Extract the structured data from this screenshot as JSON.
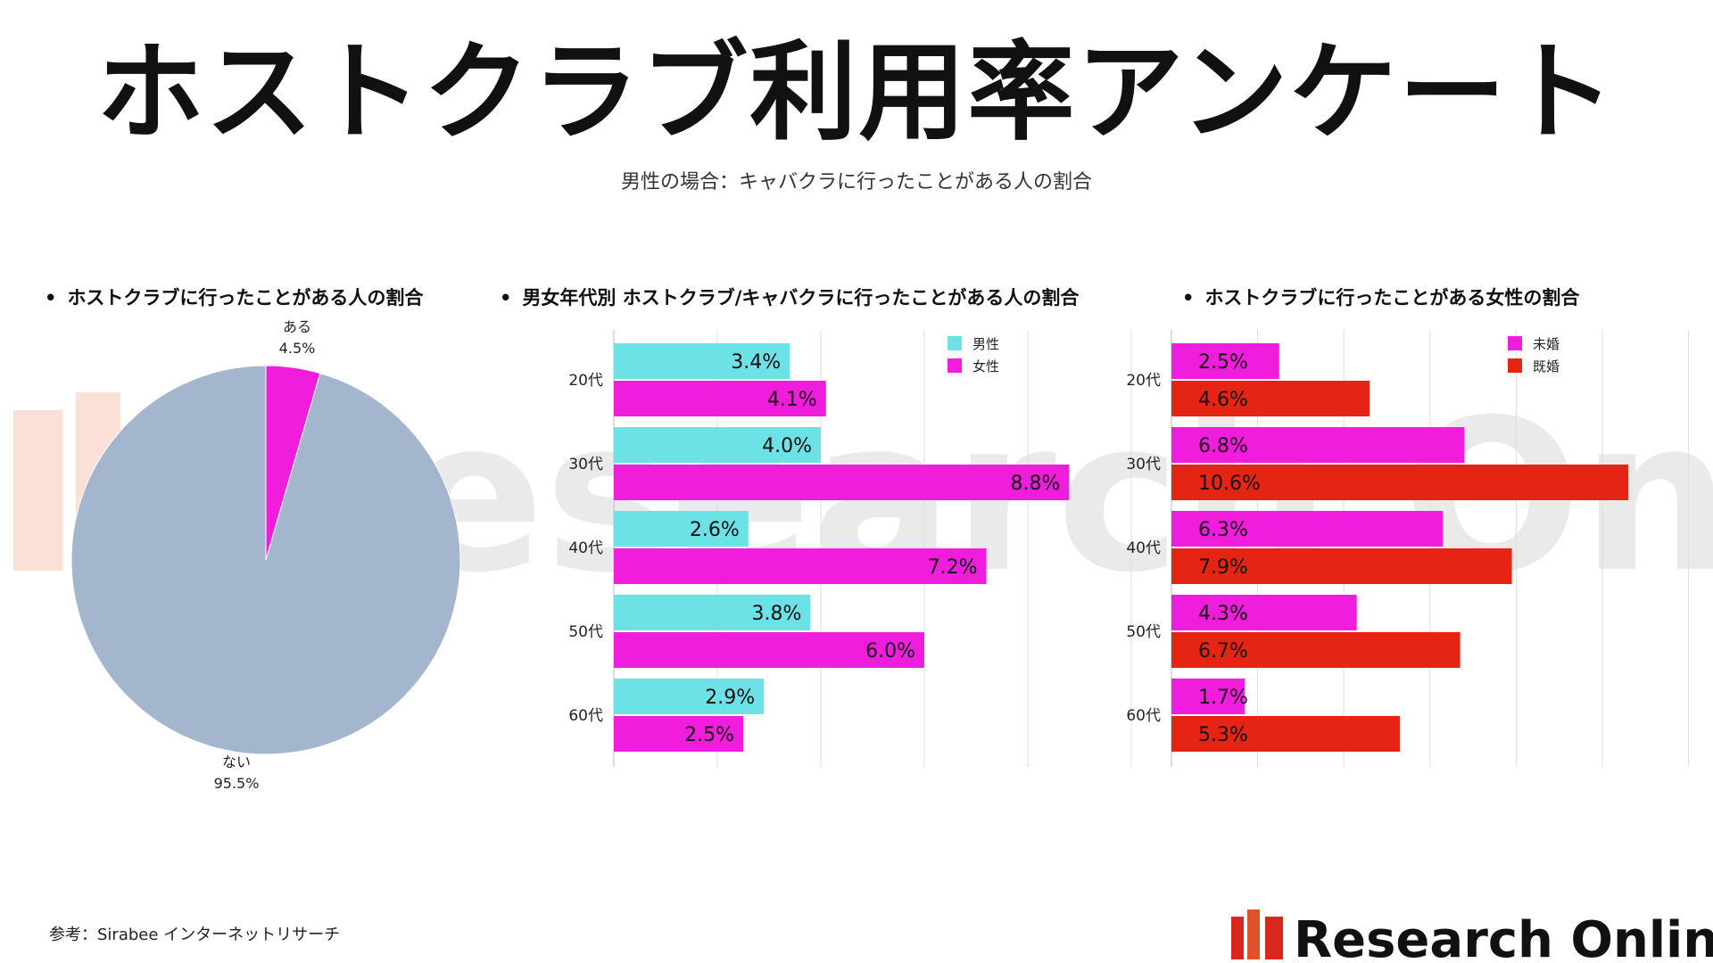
{
  "title": "ホストクラブ利用率アンケート",
  "subtitle": "男性の場合：キャバクラに行ったことがある人の割合",
  "sections": [
    "ホストクラブに行ったことがある人の割合",
    "男女年代別  ホストクラブ/キャバクラに行ったことがある人の割合",
    "ホストクラブに行ったことがある女性の割合"
  ],
  "bullet": "•",
  "watermark_text": "Research Online",
  "logo_text": "Research Online",
  "source_note": "参考：Sirabee インターネットリサーチ",
  "colors": {
    "cyan": "#6ce1e6",
    "magenta": "#f01ddc",
    "red": "#e52413",
    "pie_gray": "#a4b6cd",
    "grid": "#dddddd",
    "watermark": "#e8e8e8",
    "logo_red": "#d8281e"
  },
  "chart_data": [
    {
      "type": "pie",
      "title": "ホストクラブに行ったことがある人の割合",
      "slices": [
        {
          "label": "ある",
          "value": 4.5,
          "display": "4.5%",
          "color": "#f01ddc"
        },
        {
          "label": "ない",
          "value": 95.5,
          "display": "95.5%",
          "color": "#a4b6cd"
        }
      ]
    },
    {
      "type": "bar",
      "orientation": "horizontal",
      "title": "男女年代別  ホストクラブ/キャバクラに行ったことがある人の割合",
      "categories": [
        "20代",
        "30代",
        "40代",
        "50代",
        "60代"
      ],
      "series": [
        {
          "name": "男性",
          "color": "#6ce1e6",
          "values": [
            3.4,
            4.0,
            2.6,
            3.8,
            2.9
          ],
          "labels": [
            "3.4%",
            "4.0%",
            "2.6%",
            "3.8%",
            "2.9%"
          ]
        },
        {
          "name": "女性",
          "color": "#f01ddc",
          "values": [
            4.1,
            8.8,
            7.2,
            6.0,
            2.5
          ],
          "labels": [
            "4.1%",
            "8.8%",
            "7.2%",
            "6.0%",
            "2.5%"
          ]
        }
      ],
      "xlim": [
        0,
        10
      ],
      "x_ticks": [
        "0",
        "2",
        "4",
        "6",
        "8",
        "10"
      ],
      "grid": true,
      "legend": "top-right"
    },
    {
      "type": "bar",
      "orientation": "horizontal",
      "title": "ホストクラブに行ったことがある女性の割合",
      "categories": [
        "20代",
        "30代",
        "40代",
        "50代",
        "60代"
      ],
      "series": [
        {
          "name": "未婚",
          "color": "#f01ddc",
          "values": [
            2.5,
            6.8,
            6.3,
            4.3,
            1.7
          ],
          "labels": [
            "2.5%",
            "6.8%",
            "6.3%",
            "4.3%",
            "1.7%"
          ]
        },
        {
          "name": "既婚",
          "color": "#e52413",
          "values": [
            4.6,
            10.6,
            7.9,
            6.7,
            5.3
          ],
          "labels": [
            "4.6%",
            "10.6%",
            "7.9%",
            "6.7%",
            "5.3%"
          ]
        }
      ],
      "xlim": [
        0,
        12
      ],
      "x_ticks": [
        "0%",
        "2%",
        "4%",
        "6%",
        "8%",
        "10%",
        "12%"
      ],
      "grid": true,
      "legend": "top-right"
    }
  ]
}
